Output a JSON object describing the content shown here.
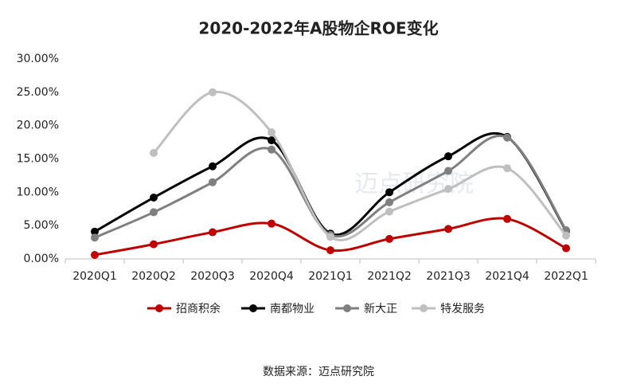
{
  "chart_data": {
    "type": "line",
    "title": "2020-2022年A股物企ROE变化",
    "categories": [
      "2020Q1",
      "2020Q2",
      "2020Q3",
      "2020Q4",
      "2021Q1",
      "2021Q2",
      "2021Q3",
      "2021Q4",
      "2022Q1"
    ],
    "series": [
      {
        "name": "招商积余",
        "color": "#c00000",
        "values": [
          0.6,
          2.2,
          4.0,
          5.3,
          1.3,
          3.0,
          4.5,
          6.0,
          1.6
        ]
      },
      {
        "name": "南都物业",
        "color": "#000000",
        "values": [
          4.1,
          9.2,
          13.9,
          17.8,
          3.8,
          10.0,
          15.4,
          18.3,
          4.2
        ]
      },
      {
        "name": "新大正",
        "color": "#7f7f7f",
        "values": [
          3.2,
          7.0,
          11.5,
          16.4,
          3.6,
          8.5,
          13.2,
          18.2,
          4.3
        ]
      },
      {
        "name": "特发服务",
        "color": "#bfbfbf",
        "values": [
          null,
          15.9,
          25.0,
          19.0,
          3.3,
          7.1,
          10.5,
          13.6,
          3.5
        ]
      }
    ],
    "ylim": [
      0,
      30
    ],
    "yticks": [
      {
        "value": 0,
        "label": "0.00%"
      },
      {
        "value": 5,
        "label": "5.00%"
      },
      {
        "value": 10,
        "label": "10.00%"
      },
      {
        "value": 15,
        "label": "15.00%"
      },
      {
        "value": 20,
        "label": "20.00%"
      },
      {
        "value": 25,
        "label": "25.00%"
      },
      {
        "value": 30,
        "label": "30.00%"
      }
    ],
    "grid": false,
    "legend": "bottom",
    "watermark": "迈点研究院",
    "source": "数据来源：迈点研究院"
  }
}
